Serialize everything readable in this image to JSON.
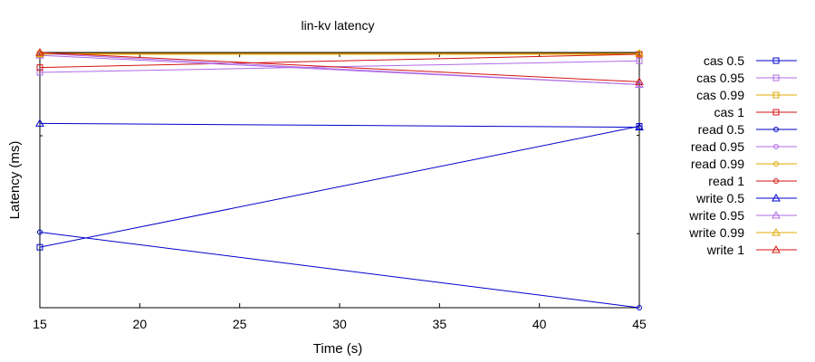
{
  "chart_data": {
    "type": "line",
    "title": "lin-kv latency",
    "xlabel": "Time (s)",
    "ylabel": "Latency (ms)",
    "x_ticks": [
      15,
      20,
      25,
      30,
      35,
      40,
      45
    ],
    "xlim": [
      15,
      45
    ],
    "ylim": [
      0,
      1
    ],
    "y_tick_labels_visible": false,
    "grid": false,
    "legend_position": "right",
    "series": [
      {
        "name": "cas 0.5",
        "color": "#0000cc",
        "marker": "square",
        "x": [
          15,
          45
        ],
        "y": [
          0.237,
          0.711
        ]
      },
      {
        "name": "cas 0.95",
        "color": "#b06be6",
        "marker": "square",
        "x": [
          15,
          45
        ],
        "y": [
          0.922,
          0.967
        ]
      },
      {
        "name": "cas 0.99",
        "color": "#e0a800",
        "marker": "square",
        "x": [
          15,
          45
        ],
        "y": [
          0.993,
          0.993
        ]
      },
      {
        "name": "cas 1",
        "color": "#d41414",
        "marker": "square",
        "x": [
          15,
          45
        ],
        "y": [
          0.941,
          0.993
        ]
      },
      {
        "name": "read 0.5",
        "color": "#0000cc",
        "marker": "circle",
        "x": [
          15,
          45
        ],
        "y": [
          0.296,
          0.0
        ]
      },
      {
        "name": "read 0.95",
        "color": "#b06be6",
        "marker": "circle",
        "x": [
          15,
          45
        ],
        "y": [
          0.996,
          0.874
        ]
      },
      {
        "name": "read 0.99",
        "color": "#e0a800",
        "marker": "circle",
        "x": [
          15,
          45
        ],
        "y": [
          0.996,
          0.996
        ]
      },
      {
        "name": "read 1",
        "color": "#d41414",
        "marker": "circle",
        "x": [
          15,
          45
        ],
        "y": [
          0.996,
          0.996
        ]
      },
      {
        "name": "write 0.5",
        "color": "#0000cc",
        "marker": "triangle",
        "x": [
          15,
          45
        ],
        "y": [
          0.722,
          0.707
        ]
      },
      {
        "name": "write 0.95",
        "color": "#b06be6",
        "marker": "triangle",
        "x": [
          15,
          45
        ],
        "y": [
          0.989,
          0.874
        ]
      },
      {
        "name": "write 0.99",
        "color": "#e0a800",
        "marker": "triangle",
        "x": [
          15,
          45
        ],
        "y": [
          0.996,
          0.996
        ]
      },
      {
        "name": "write 1",
        "color": "#d41414",
        "marker": "triangle",
        "x": [
          15,
          45
        ],
        "y": [
          1.0,
          0.885
        ]
      }
    ]
  }
}
